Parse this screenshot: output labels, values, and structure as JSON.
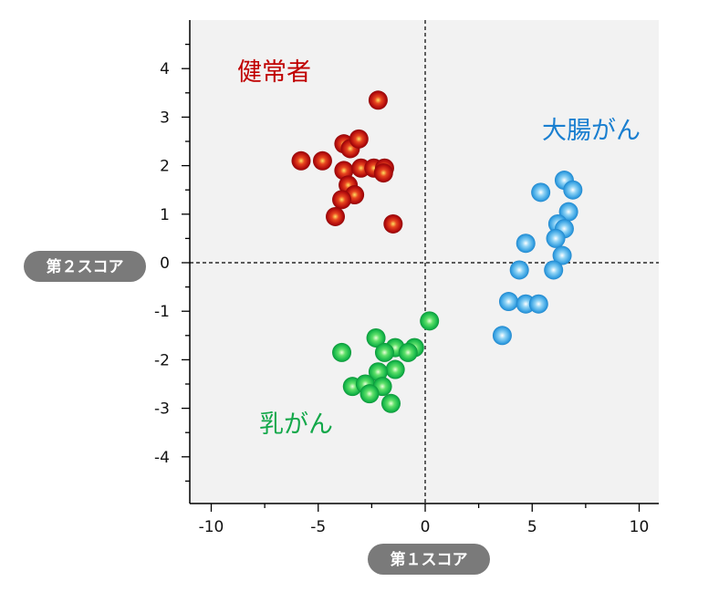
{
  "chart_data": {
    "type": "scatter",
    "xlabel": "第１スコア",
    "ylabel": "第２スコア",
    "xlim": [
      -11,
      11
    ],
    "ylim": [
      -4.9,
      4.9
    ],
    "xticks": [
      -10,
      -5,
      0,
      5,
      10
    ],
    "yticks": [
      4,
      3,
      2,
      1,
      0,
      -1,
      -2,
      -3,
      -4
    ],
    "reference_lines": {
      "x": 0,
      "y": 0,
      "style": "dashed"
    },
    "grid": false,
    "series": [
      {
        "name": "健常者",
        "color": "#c00000",
        "points": [
          [
            -2.2,
            3.35
          ],
          [
            -3.8,
            2.45
          ],
          [
            -3.5,
            2.35
          ],
          [
            -3.1,
            2.55
          ],
          [
            -5.8,
            2.1
          ],
          [
            -4.8,
            2.1
          ],
          [
            -3.8,
            1.9
          ],
          [
            -3.0,
            1.95
          ],
          [
            -2.4,
            1.95
          ],
          [
            -1.9,
            1.95
          ],
          [
            -1.95,
            1.85
          ],
          [
            -3.6,
            1.6
          ],
          [
            -3.3,
            1.4
          ],
          [
            -3.9,
            1.3
          ],
          [
            -4.2,
            0.95
          ],
          [
            -1.5,
            0.8
          ]
        ]
      },
      {
        "name": "大腸がん",
        "color": "#1a7fd0",
        "points": [
          [
            6.5,
            1.7
          ],
          [
            6.9,
            1.5
          ],
          [
            5.4,
            1.45
          ],
          [
            6.7,
            1.05
          ],
          [
            6.2,
            0.8
          ],
          [
            6.5,
            0.7
          ],
          [
            6.1,
            0.5
          ],
          [
            4.7,
            0.4
          ],
          [
            6.4,
            0.15
          ],
          [
            4.4,
            -0.15
          ],
          [
            6.0,
            -0.15
          ],
          [
            3.9,
            -0.8
          ],
          [
            4.7,
            -0.85
          ],
          [
            5.3,
            -0.85
          ],
          [
            3.6,
            -1.5
          ]
        ]
      },
      {
        "name": "乳がん",
        "color": "#13a84a",
        "points": [
          [
            0.2,
            -1.2
          ],
          [
            -2.3,
            -1.55
          ],
          [
            -3.9,
            -1.85
          ],
          [
            -1.4,
            -1.75
          ],
          [
            -1.9,
            -1.85
          ],
          [
            -0.5,
            -1.75
          ],
          [
            -0.8,
            -1.85
          ],
          [
            -1.4,
            -2.2
          ],
          [
            -2.2,
            -2.25
          ],
          [
            -3.4,
            -2.55
          ],
          [
            -2.8,
            -2.5
          ],
          [
            -2.0,
            -2.55
          ],
          [
            -2.6,
            -2.7
          ],
          [
            -1.6,
            -2.9
          ]
        ]
      }
    ]
  },
  "group_labels": [
    {
      "text": "健常者",
      "color": "#c00000"
    },
    {
      "text": "大腸がん",
      "color": "#1a7fd0"
    },
    {
      "text": "乳がん",
      "color": "#13a84a"
    }
  ],
  "axis_titles": {
    "x": "第１スコア",
    "y": "第２スコア"
  }
}
